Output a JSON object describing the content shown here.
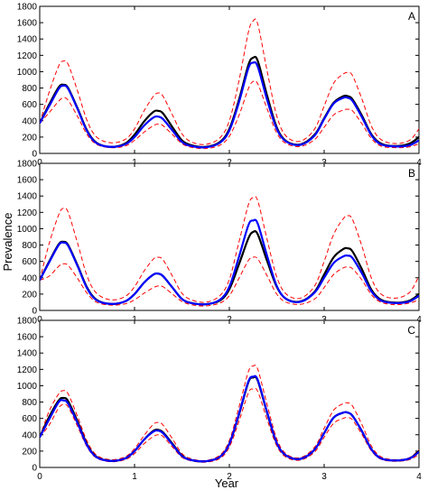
{
  "chart_data": {
    "type": "line",
    "ylabel": "Prevalence",
    "xlabel": "Year",
    "xlim": [
      0,
      4
    ],
    "ylim": [
      0,
      1800
    ],
    "x_ticks": [
      "0",
      "1",
      "2",
      "3",
      "4"
    ],
    "y_ticks": [
      "0",
      "200",
      "400",
      "600",
      "800",
      "1000",
      "1200",
      "1400",
      "1600",
      "1800"
    ],
    "x": [
      0,
      0.1,
      0.2,
      0.25,
      0.3,
      0.4,
      0.5,
      0.6,
      0.75,
      0.9,
      1.0,
      1.1,
      1.2,
      1.25,
      1.3,
      1.4,
      1.5,
      1.6,
      1.75,
      1.9,
      2.0,
      2.1,
      2.2,
      2.25,
      2.3,
      2.4,
      2.5,
      2.6,
      2.75,
      2.9,
      3.0,
      3.1,
      3.2,
      3.25,
      3.3,
      3.4,
      3.5,
      3.6,
      3.75,
      3.9,
      4.0
    ],
    "series_colors": {
      "black": "#000000",
      "blue": "#0000ff",
      "red_dashed": "#ff0000"
    },
    "panels": [
      {
        "label": "A",
        "series": [
          {
            "color": "black",
            "style": "solid",
            "values": [
              370,
              600,
              810,
              840,
              800,
              550,
              280,
              130,
              80,
              120,
              230,
              390,
              510,
              520,
              490,
              320,
              160,
              100,
              80,
              140,
              300,
              650,
              1080,
              1170,
              1130,
              700,
              320,
              150,
              110,
              230,
              430,
              620,
              700,
              700,
              660,
              460,
              230,
              120,
              90,
              120,
              200
            ]
          },
          {
            "color": "blue",
            "style": "solid",
            "values": [
              370,
              580,
              790,
              830,
              790,
              540,
              270,
              125,
              80,
              110,
              200,
              340,
              440,
              450,
              420,
              280,
              140,
              90,
              75,
              130,
              280,
              620,
              1040,
              1110,
              1060,
              650,
              300,
              145,
              105,
              220,
              420,
              610,
              680,
              680,
              640,
              440,
              220,
              110,
              85,
              100,
              160
            ]
          },
          {
            "color": "red_dashed",
            "style": "dashed",
            "values": [
              370,
              750,
              1070,
              1130,
              1090,
              760,
              400,
              200,
              130,
              170,
              300,
              520,
              700,
              740,
              700,
              470,
              240,
              140,
              110,
              190,
              400,
              880,
              1480,
              1620,
              1580,
              1000,
              460,
              210,
              150,
              300,
              580,
              860,
              970,
              990,
              950,
              660,
              330,
              170,
              120,
              160,
              300
            ]
          },
          {
            "color": "red_dashed",
            "style": "dashed",
            "values": [
              370,
              500,
              640,
              680,
              650,
              450,
              230,
              110,
              70,
              90,
              160,
              260,
              340,
              360,
              340,
              230,
              120,
              75,
              60,
              100,
              210,
              460,
              790,
              880,
              850,
              540,
              250,
              120,
              85,
              170,
              320,
              470,
              530,
              540,
              520,
              360,
              180,
              90,
              70,
              80,
              120
            ]
          }
        ]
      },
      {
        "label": "B",
        "series": [
          {
            "color": "black",
            "style": "solid",
            "values": [
              370,
              600,
              810,
              840,
              800,
              550,
              280,
              130,
              80,
              110,
              200,
              340,
              440,
              450,
              420,
              280,
              140,
              90,
              75,
              120,
              260,
              560,
              880,
              960,
              930,
              600,
              290,
              140,
              110,
              230,
              440,
              650,
              750,
              760,
              720,
              500,
              250,
              130,
              95,
              120,
              200
            ]
          },
          {
            "color": "blue",
            "style": "solid",
            "values": [
              370,
              590,
              800,
              830,
              790,
              540,
              270,
              125,
              80,
              110,
              200,
              340,
              440,
              450,
              420,
              280,
              140,
              90,
              75,
              130,
              290,
              650,
              1040,
              1100,
              1060,
              660,
              300,
              140,
              105,
              220,
              400,
              580,
              660,
              670,
              640,
              450,
              230,
              120,
              90,
              110,
              180
            ]
          },
          {
            "color": "red_dashed",
            "style": "dashed",
            "values": [
              370,
              820,
              1170,
              1250,
              1200,
              820,
              420,
              210,
              130,
              170,
              290,
              480,
              630,
              650,
              620,
              420,
              210,
              130,
              100,
              180,
              380,
              830,
              1290,
              1380,
              1340,
              860,
              410,
              200,
              150,
              300,
              600,
              930,
              1120,
              1160,
              1110,
              780,
              390,
              200,
              150,
              220,
              420
            ]
          },
          {
            "color": "red_dashed",
            "style": "dashed",
            "values": [
              370,
              420,
              540,
              570,
              550,
              390,
              210,
              100,
              65,
              80,
              130,
              210,
              280,
              300,
              290,
              200,
              110,
              70,
              55,
              90,
              180,
              390,
              610,
              650,
              630,
              420,
              200,
              100,
              75,
              140,
              280,
              440,
              520,
              530,
              510,
              370,
              190,
              100,
              70,
              90,
              130
            ]
          }
        ]
      },
      {
        "label": "C",
        "series": [
          {
            "color": "black",
            "style": "solid",
            "values": [
              370,
              620,
              820,
              850,
              810,
              560,
              280,
              130,
              80,
              110,
              200,
              340,
              450,
              460,
              430,
              290,
              145,
              90,
              75,
              130,
              290,
              640,
              1040,
              1100,
              1060,
              660,
              300,
              145,
              105,
              220,
              420,
              610,
              670,
              670,
              630,
              440,
              220,
              110,
              85,
              110,
              200
            ]
          },
          {
            "color": "blue",
            "style": "solid",
            "values": [
              370,
              590,
              800,
              820,
              780,
              540,
              270,
              125,
              80,
              110,
              200,
              340,
              440,
              450,
              420,
              280,
              140,
              90,
              75,
              130,
              290,
              650,
              1050,
              1110,
              1070,
              670,
              300,
              145,
              105,
              220,
              420,
              610,
              670,
              670,
              630,
              440,
              220,
              110,
              85,
              110,
              190
            ]
          },
          {
            "color": "red_dashed",
            "style": "dashed",
            "values": [
              370,
              690,
              900,
              940,
              900,
              620,
              320,
              150,
              95,
              130,
              230,
              390,
              530,
              550,
              520,
              350,
              170,
              105,
              85,
              150,
              330,
              730,
              1170,
              1240,
              1200,
              760,
              350,
              165,
              120,
              250,
              480,
              700,
              780,
              790,
              750,
              520,
              260,
              130,
              95,
              120,
              220
            ]
          },
          {
            "color": "red_dashed",
            "style": "dashed",
            "values": [
              370,
              520,
              730,
              770,
              740,
              500,
              250,
              115,
              70,
              95,
              170,
              290,
              380,
              400,
              380,
              250,
              125,
              80,
              65,
              110,
              250,
              560,
              910,
              960,
              930,
              580,
              265,
              125,
              90,
              190,
              370,
              540,
              600,
              610,
              580,
              400,
              200,
              100,
              75,
              95,
              160
            ]
          }
        ]
      }
    ]
  }
}
